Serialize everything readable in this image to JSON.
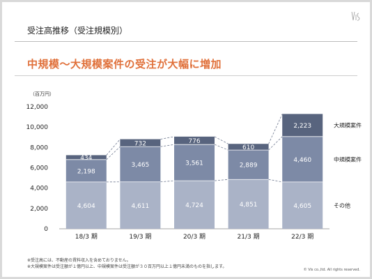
{
  "header": {
    "title": "受注高推移（受注規模別）"
  },
  "headline": "中規模～大規模案件の受注が大幅に増加",
  "unit_label": "（百万円）",
  "notes": [
    "※受注高には、不動産の賃料収入を含めておりません。",
    "※大規模案件は受注額が１億円以上、中規模案件は受注額が３０百万円以上１億円未満のものを指します。"
  ],
  "copyright": "© Vis co.,ltd. All rights reserved.",
  "colors": {
    "accent": "#e0703a",
    "large": "#58647e",
    "medium": "#7d8aa6",
    "other": "#aab3c7"
  },
  "chart_data": {
    "type": "bar",
    "stacked": true,
    "categories": [
      "18/3 期",
      "19/3 期",
      "20/3 期",
      "21/3 期",
      "22/3 期"
    ],
    "series": [
      {
        "name": "その他",
        "values": [
          4604,
          4611,
          4724,
          4851,
          4605
        ],
        "labels": [
          "4,604",
          "4,611",
          "4,724",
          "4,851",
          "4,605"
        ]
      },
      {
        "name": "中規模案件",
        "values": [
          2198,
          3465,
          3561,
          2889,
          4460
        ],
        "labels": [
          "2,198",
          "3,465",
          "3,561",
          "2,889",
          "4,460"
        ]
      },
      {
        "name": "大規模案件",
        "values": [
          434,
          732,
          776,
          610,
          2223
        ],
        "labels": [
          "434",
          "732",
          "776",
          "610",
          "2,223"
        ]
      }
    ],
    "ylim": [
      0,
      12000
    ],
    "yticks": [
      0,
      2000,
      4000,
      6000,
      8000,
      10000,
      12000
    ],
    "ytick_labels": [
      "0",
      "2,000",
      "4,000",
      "6,000",
      "8,000",
      "10,000",
      "12,000"
    ],
    "grid": false,
    "legend": "right"
  }
}
